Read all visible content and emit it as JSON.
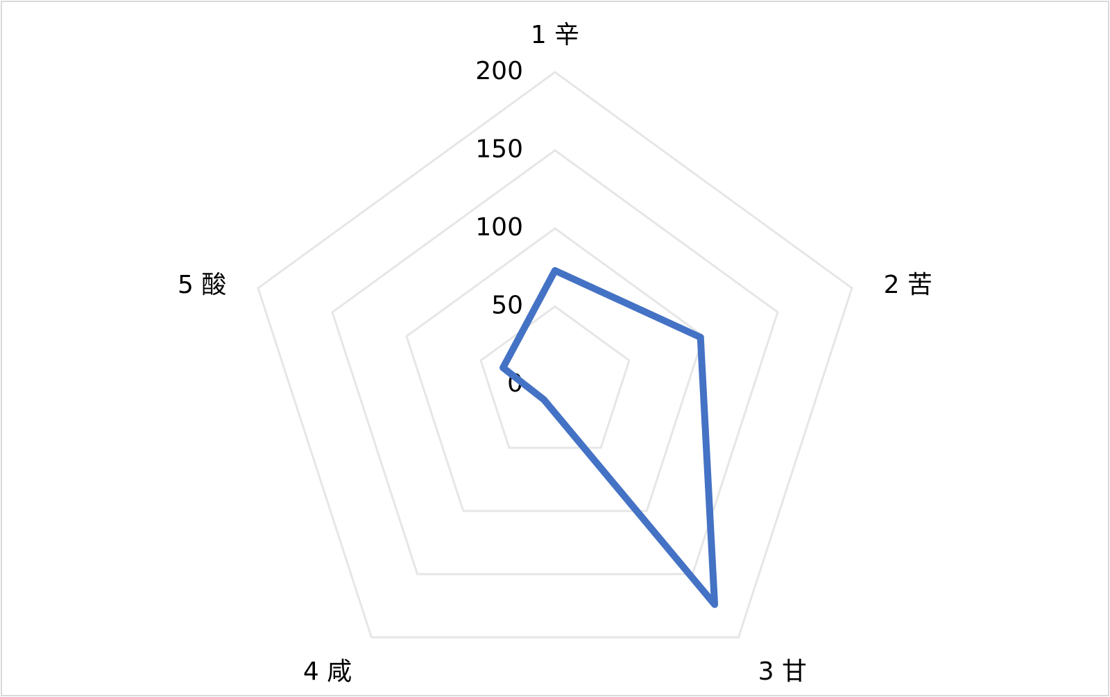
{
  "chart_data": {
    "type": "radar",
    "categories": [
      "1 辛",
      "2 苦",
      "3 甘",
      "4 咸",
      "5 酸"
    ],
    "series": [
      {
        "color": "#4472c4",
        "values": [
          73,
          98,
          174,
          12,
          35
        ]
      }
    ],
    "ylim": [
      0,
      200
    ],
    "yticks": [
      0,
      50,
      100,
      150,
      200
    ],
    "grid": true
  }
}
